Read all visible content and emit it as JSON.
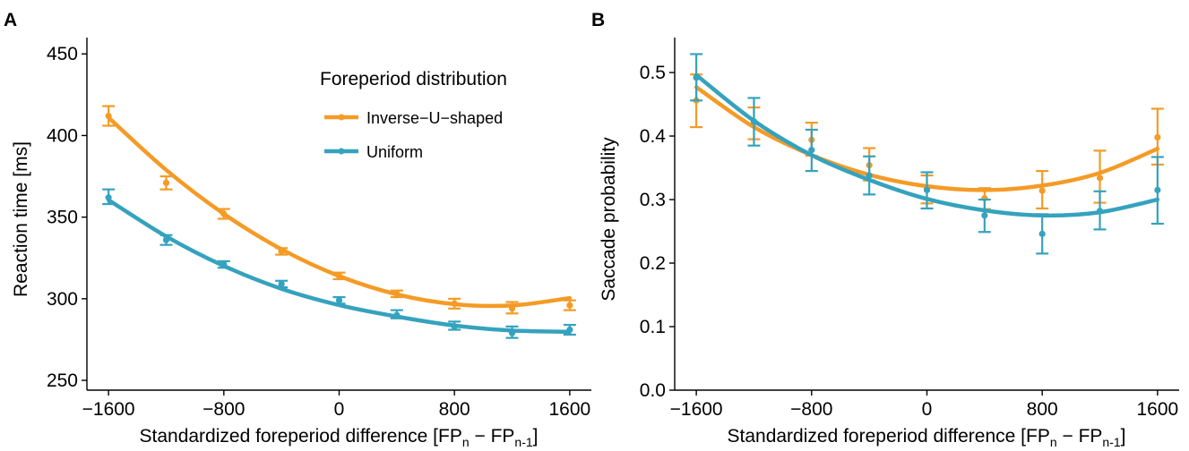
{
  "colors": {
    "inverse_u": "#F49B26",
    "uniform": "#35A2BE"
  },
  "legend": {
    "title": "Foreperiod distribution",
    "entries": [
      {
        "label": "Inverse−U−shaped",
        "color": "#F49B26"
      },
      {
        "label": "Uniform",
        "color": "#35A2BE"
      }
    ]
  },
  "chart_data": [
    {
      "panel": "A",
      "type": "line",
      "xlabel": "Standardized foreperiod difference [FP",
      "ylabel": "Reaction time [ms]",
      "xticks": [
        -1600,
        -800,
        0,
        800,
        1600
      ],
      "yticks": [
        250,
        300,
        350,
        400,
        450
      ],
      "xlim": [
        -1750,
        1750
      ],
      "ylim": [
        244,
        460
      ],
      "x": [
        -1600,
        -1200,
        -800,
        -400,
        0,
        400,
        800,
        1200,
        1600
      ],
      "series": [
        {
          "name": "Inverse−U−shaped",
          "color": "#F49B26",
          "points": [
            412,
            371,
            352,
            329,
            314,
            303,
            297,
            294,
            296
          ],
          "err_low": [
            406,
            367,
            349,
            327,
            312,
            301,
            294,
            291,
            293
          ],
          "err_high": [
            418,
            375,
            355,
            331,
            316,
            305,
            300,
            298,
            299
          ],
          "fit": [
            411,
            378.9,
            352,
            330.3,
            313.9,
            302.7,
            296.7,
            295.9,
            300.4
          ]
        },
        {
          "name": "Uniform",
          "color": "#35A2BE",
          "points": [
            362,
            336,
            321,
            309,
            299,
            290,
            283,
            279,
            281
          ],
          "err_low": [
            358,
            333,
            319,
            307,
            297,
            288,
            281,
            276,
            278
          ],
          "err_high": [
            367,
            339,
            323,
            311,
            301,
            293,
            286,
            283,
            284
          ],
          "fit": [
            360.5,
            338.2,
            320.1,
            306.1,
            296.1,
            289.1,
            283.6,
            280.5,
            279.8
          ]
        }
      ]
    },
    {
      "panel": "B",
      "type": "line",
      "xlabel": "Standardized foreperiod difference [FP",
      "ylabel": "Saccade probability",
      "xticks": [
        -1600,
        -800,
        0,
        800,
        1600
      ],
      "yticks": [
        0.0,
        0.1,
        0.2,
        0.3,
        0.4,
        0.5
      ],
      "xlim": [
        -1750,
        1750
      ],
      "ylim": [
        0.0,
        0.555
      ],
      "x": [
        -1600,
        -1200,
        -800,
        -400,
        0,
        400,
        800,
        1200,
        1600
      ],
      "series": [
        {
          "name": "Inverse−U−shaped",
          "color": "#F49B26",
          "points": [
            0.456,
            0.42,
            0.394,
            0.354,
            0.316,
            0.302,
            0.314,
            0.334,
            0.398
          ],
          "err_low": [
            0.414,
            0.395,
            0.369,
            0.33,
            0.294,
            0.285,
            0.286,
            0.295,
            0.355
          ],
          "err_high": [
            0.497,
            0.445,
            0.421,
            0.381,
            0.338,
            0.318,
            0.345,
            0.377,
            0.443
          ],
          "fit": [
            0.477,
            0.414,
            0.37,
            0.339,
            0.321,
            0.315,
            0.322,
            0.342,
            0.38
          ]
        },
        {
          "name": "Uniform",
          "color": "#35A2BE",
          "points": [
            0.492,
            0.423,
            0.378,
            0.338,
            0.315,
            0.275,
            0.246,
            0.282,
            0.315
          ],
          "err_low": [
            0.456,
            0.385,
            0.345,
            0.308,
            0.286,
            0.249,
            0.215,
            0.253,
            0.262
          ],
          "err_high": [
            0.529,
            0.46,
            0.41,
            0.368,
            0.343,
            0.3,
            0.277,
            0.313,
            0.367
          ],
          "fit": [
            0.496,
            0.424,
            0.37,
            0.331,
            0.301,
            0.283,
            0.275,
            0.28,
            0.3
          ]
        }
      ]
    }
  ],
  "panels": [
    {
      "label": "A",
      "xlabel_sub_n": "n",
      "xlabel_mid": " − FP",
      "xlabel_sub_n1": "n-1",
      "xlabel_end": "]"
    },
    {
      "label": "B",
      "xlabel_sub_n": "n",
      "xlabel_mid": " − FP",
      "xlabel_sub_n1": "n-1",
      "xlabel_end": "]"
    }
  ]
}
